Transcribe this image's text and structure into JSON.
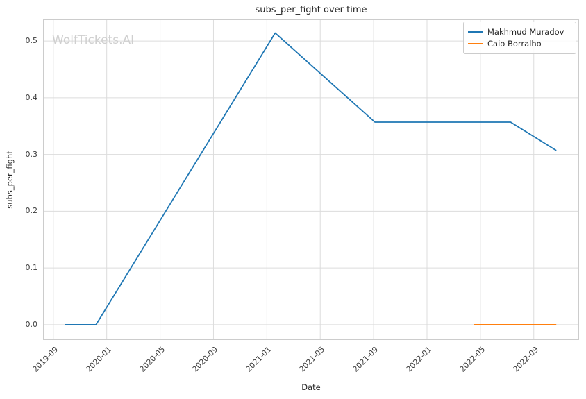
{
  "figure": {
    "title": "subs_per_fight over time",
    "xlabel": "Date",
    "ylabel": "subs_per_fight",
    "watermark": "WolfTickets.AI"
  },
  "legend": {
    "position": "upper right",
    "items": [
      {
        "label": "Makhmud Muradov",
        "color": "#1f77b4"
      },
      {
        "label": "Caio Borralho",
        "color": "#ff7f0e"
      }
    ]
  },
  "colors": {
    "grid": "#dcdcdc",
    "spine": "#cccccc",
    "text": "#262626",
    "tick_text": "#3b3b3b",
    "watermark": "#cfcfcf",
    "background": "#ffffff"
  },
  "chart_data": {
    "type": "line",
    "title": "subs_per_fight over time",
    "xlabel": "Date",
    "ylabel": "subs_per_fight",
    "grid": true,
    "legend_position": "upper right",
    "x_tick_labels": [
      "2019-09",
      "2020-01",
      "2020-05",
      "2020-09",
      "2021-01",
      "2021-05",
      "2021-09",
      "2022-01",
      "2022-05",
      "2022-09"
    ],
    "y_ticks": [
      0.0,
      0.1,
      0.2,
      0.3,
      0.4,
      0.5
    ],
    "x_domain": [
      "2019-08-08",
      "2022-12-13"
    ],
    "y_domain": [
      -0.027,
      0.538
    ],
    "series": [
      {
        "name": "Makhmud Muradov",
        "color": "#1f77b4",
        "points": [
          [
            "2019-09-28",
            0.0
          ],
          [
            "2019-12-07",
            0.0
          ],
          [
            "2021-01-20",
            0.514
          ],
          [
            "2021-09-04",
            0.357
          ],
          [
            "2022-07-09",
            0.357
          ],
          [
            "2022-10-22",
            0.307
          ]
        ]
      },
      {
        "name": "Caio Borralho",
        "color": "#ff7f0e",
        "points": [
          [
            "2022-04-16",
            0.0
          ],
          [
            "2022-07-09",
            0.0
          ],
          [
            "2022-10-22",
            0.0
          ]
        ]
      }
    ]
  }
}
